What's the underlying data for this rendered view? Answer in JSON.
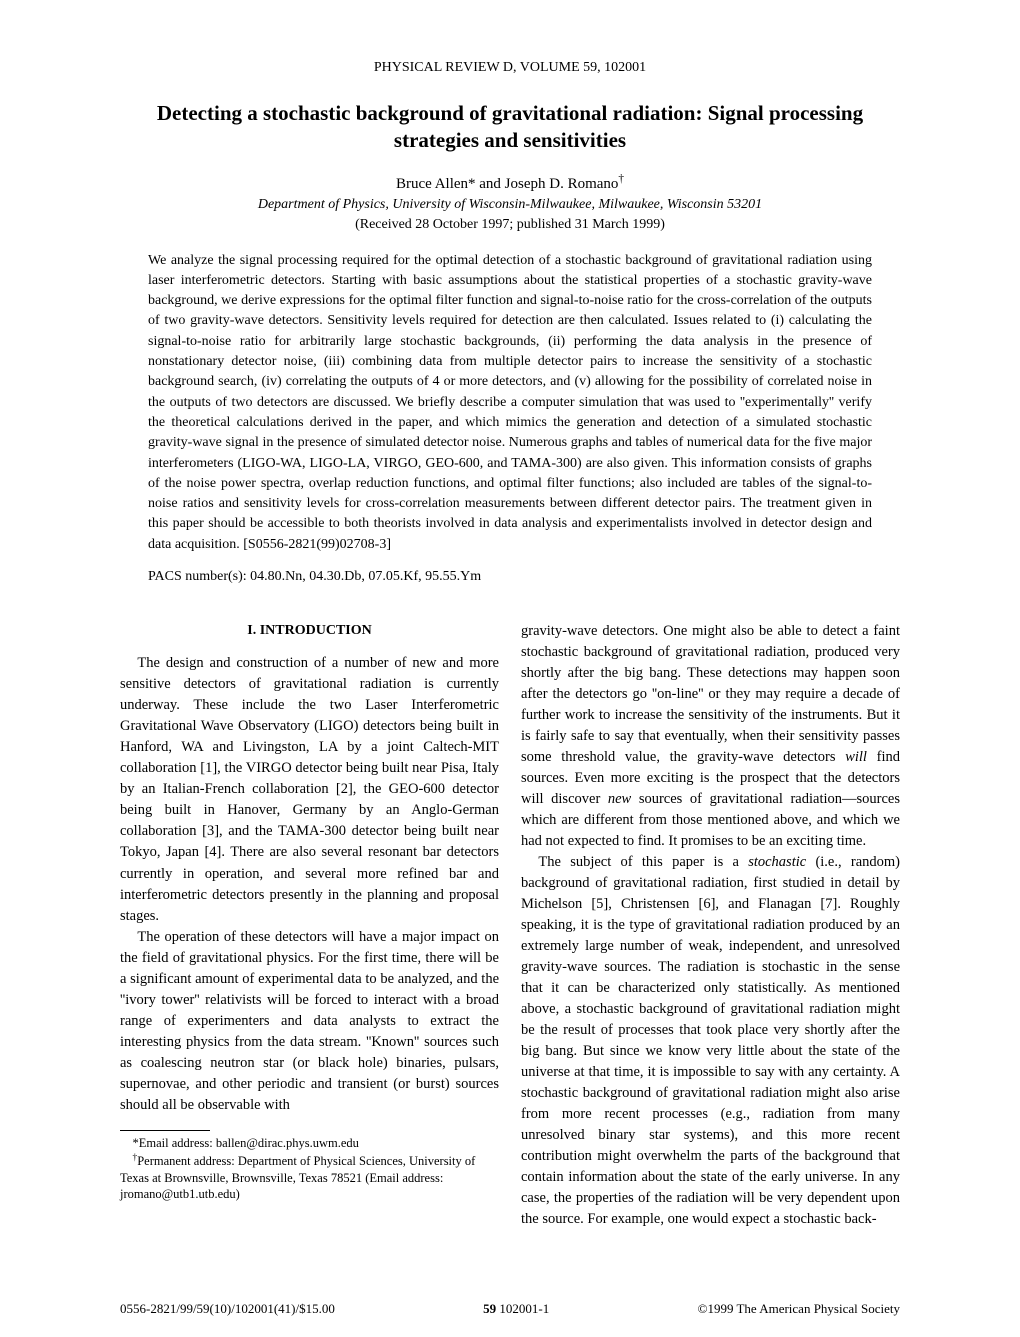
{
  "journal_header": "PHYSICAL REVIEW D, VOLUME 59, 102001",
  "title": "Detecting a stochastic background of gravitational radiation: Signal processing strategies and sensitivities",
  "authors_html": "Bruce Allen* and Joseph D. Romano<span class=\"sup\">†</span>",
  "affiliation": "Department of Physics, University of Wisconsin-Milwaukee, Milwaukee, Wisconsin 53201",
  "dates": "(Received 28 October 1997; published 31 March 1999)",
  "abstract": "We analyze the signal processing required for the optimal detection of a stochastic background of gravitational radiation using laser interferometric detectors. Starting with basic assumptions about the statistical properties of a stochastic gravity-wave background, we derive expressions for the optimal filter function and signal-to-noise ratio for the cross-correlation of the outputs of two gravity-wave detectors. Sensitivity levels required for detection are then calculated. Issues related to (i) calculating the signal-to-noise ratio for arbitrarily large stochastic backgrounds, (ii) performing the data analysis in the presence of nonstationary detector noise, (iii) combining data from multiple detector pairs to increase the sensitivity of a stochastic background search, (iv) correlating the outputs of 4 or more detectors, and (v) allowing for the possibility of correlated noise in the outputs of two detectors are discussed. We briefly describe a computer simulation that was used to ''experimentally'' verify the theoretical calculations derived in the paper, and which mimics the generation and detection of a simulated stochastic gravity-wave signal in the presence of simulated detector noise. Numerous graphs and tables of numerical data for the five major interferometers (LIGO-WA, LIGO-LA, VIRGO, GEO-600, and TAMA-300) are also given. This information consists of graphs of the noise power spectra, overlap reduction functions, and optimal filter functions; also included are tables of the signal-to-noise ratios and sensitivity levels for cross-correlation measurements between different detector pairs. The treatment given in this paper should be accessible to both theorists involved in data analysis and experimentalists involved in detector design and data acquisition. [S0556-2821(99)02708-3]",
  "pacs": "PACS number(s): 04.80.Nn, 04.30.Db, 07.05.Kf, 95.55.Ym",
  "section_heading": "I. INTRODUCTION",
  "para_left_1": "The design and construction of a number of new and more sensitive detectors of gravitational radiation is currently underway. These include the two Laser Interferometric Gravitational Wave Observatory (LIGO) detectors being built in Hanford, WA and Livingston, LA by a joint Caltech-MIT collaboration [1], the VIRGO detector being built near Pisa, Italy by an Italian-French collaboration [2], the GEO-600 detector being built in Hanover, Germany by an Anglo-German collaboration [3], and the TAMA-300 detector being built near Tokyo, Japan [4]. There are also several resonant bar detectors currently in operation, and several more refined bar and interferometric detectors presently in the planning and proposal stages.",
  "para_left_2": "The operation of these detectors will have a major impact on the field of gravitational physics. For the first time, there will be a significant amount of experimental data to be analyzed, and the ''ivory tower'' relativists will be forced to interact with a broad range of experimenters and data analysts to extract the interesting physics from the data stream. ''Known'' sources such as coalescing neutron star (or black hole) binaries, pulsars, supernovae, and other periodic and transient (or burst) sources should all be observable with",
  "footnote1": "*Email address: ballen@dirac.phys.uwm.edu",
  "footnote2_html": "<span class=\"sup\">†</span>Permanent address: Department of Physical Sciences, University of Texas at Brownsville, Brownsville, Texas 78521 (Email address: jromano@utb1.utb.edu)",
  "para_right_1_html": "gravity-wave detectors. One might also be able to detect a faint stochastic background of gravitational radiation, produced very shortly after the big bang. These detections may happen soon after the detectors go ''on-line'' or they may require a decade of further work to increase the sensitivity of the instruments. But it is fairly safe to say that eventually, when their sensitivity passes some threshold value, the gravity-wave detectors <span class=\"ital\">will</span> find sources. Even more exciting is the prospect that the detectors will discover <span class=\"ital\">new</span> sources of gravitational radiation—sources which are different from those mentioned above, and which we had not expected to find. It promises to be an exciting time.",
  "para_right_2_html": "The subject of this paper is a <span class=\"ital\">stochastic</span> (i.e., random) background of gravitational radiation, first studied in detail by Michelson [5], Christensen [6], and Flanagan [7]. Roughly speaking, it is the type of gravitational radiation produced by an extremely large number of weak, independent, and unresolved gravity-wave sources. The radiation is stochastic in the sense that it can be characterized only statistically. As mentioned above, a stochastic background of gravitational radiation might be the result of processes that took place very shortly after the big bang. But since we know very little about the state of the universe at that time, it is impossible to say with any certainty. A stochastic background of gravitational radiation might also arise from more recent processes (e.g., radiation from many unresolved binary star systems), and this more recent contribution might overwhelm the parts of the background that contain information about the state of the early universe. In any case, the properties of the radiation will be very dependent upon the source. For example, one would expect a stochastic back-",
  "footer_left": "0556-2821/99/59(10)/102001(41)/$15.00",
  "footer_center_html": "<b>59</b> 102001-1",
  "footer_right": "©1999 The American Physical Society"
}
